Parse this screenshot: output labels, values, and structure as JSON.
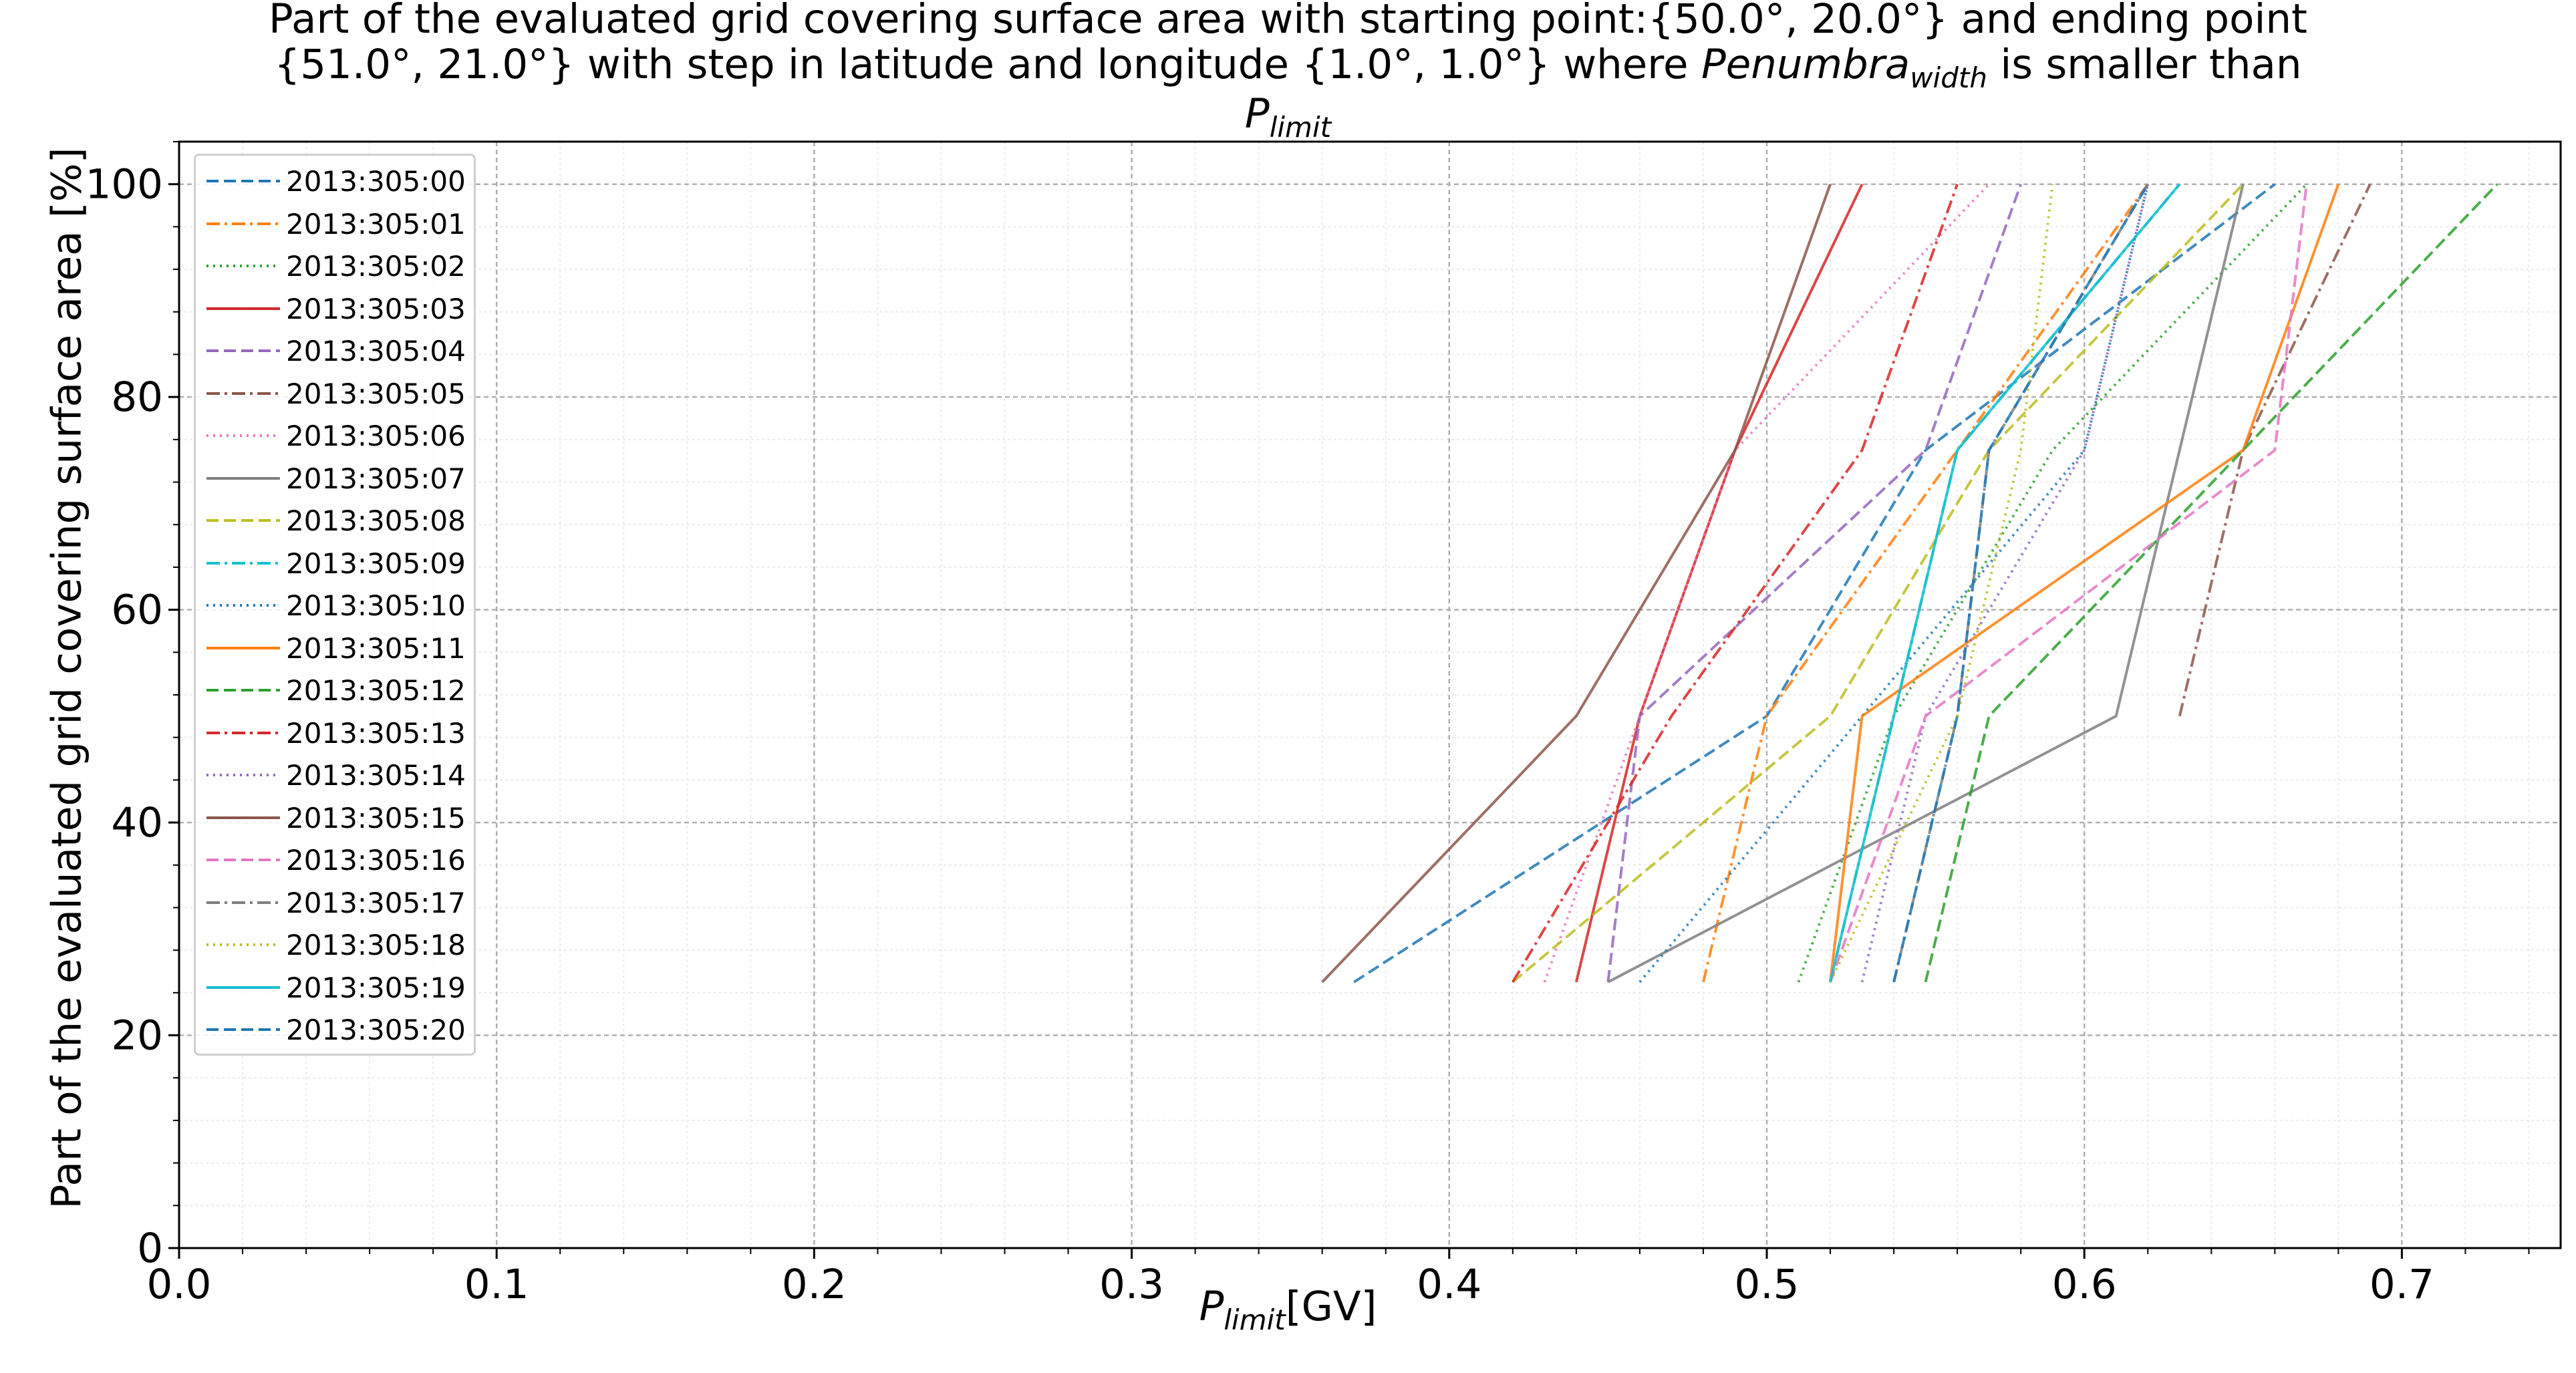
{
  "title": {
    "line1": "Part of the evaluated grid covering surface area with starting point:{50.0°, 20.0°} and ending point",
    "line2_a": "{51.0°, 21.0°} with step in latitude and longitude {1.0°, 1.0°} where ",
    "line2_b": "Penumbra",
    "line2_c": "width",
    "line2_d": " is smaller than",
    "line3_a": "P",
    "line3_b": "limit"
  },
  "chart_data": {
    "type": "line",
    "title": "Part of the evaluated grid covering surface area with starting point:{50.0°, 20.0°} and ending point {51.0°, 21.0°} with step in latitude and longitude {1.0°, 1.0°} where Penumbra_width is smaller than P_limit",
    "xlabel_main": "P",
    "xlabel_sub": "limit",
    "xlabel_unit": "[GV]",
    "ylabel": "Part of the evaluated grid covering surface area  [%]",
    "xlim": [
      0.0,
      0.75
    ],
    "ylim": [
      0,
      104
    ],
    "xticks": [
      0.0,
      0.1,
      0.2,
      0.3,
      0.4,
      0.5,
      0.6,
      0.7
    ],
    "xtick_labels": [
      "0.0",
      "0.1",
      "0.2",
      "0.3",
      "0.4",
      "0.5",
      "0.6",
      "0.7"
    ],
    "yticks": [
      0,
      20,
      40,
      60,
      80,
      100
    ],
    "ytick_labels": [
      "0",
      "20",
      "40",
      "60",
      "80",
      "100"
    ],
    "grid": true,
    "legend_position": "upper-left",
    "series": [
      {
        "name": "2013:305:00",
        "color": "#1f77b4",
        "style": "dashed",
        "x": [
          0.37,
          0.5,
          0.55,
          0.66
        ],
        "y": [
          25,
          50,
          75,
          100
        ]
      },
      {
        "name": "2013:305:01",
        "color": "#ff7f0e",
        "style": "dashdot",
        "x": [
          0.48,
          0.5,
          0.56,
          0.62
        ],
        "y": [
          25,
          50,
          75,
          100
        ]
      },
      {
        "name": "2013:305:02",
        "color": "#2ca02c",
        "style": "dotted",
        "x": [
          0.51,
          0.54,
          0.59,
          0.67
        ],
        "y": [
          25,
          50,
          75,
          100
        ]
      },
      {
        "name": "2013:305:03",
        "color": "#d62728",
        "style": "solid",
        "x": [
          0.44,
          0.46,
          0.49,
          0.53
        ],
        "y": [
          25,
          50,
          75,
          100
        ]
      },
      {
        "name": "2013:305:04",
        "color": "#9467bd",
        "style": "dashed",
        "x": [
          0.45,
          0.46,
          0.55,
          0.58
        ],
        "y": [
          25,
          50,
          75,
          100
        ]
      },
      {
        "name": "2013:305:05",
        "color": "#8c564b",
        "style": "dashdot",
        "x": [
          0.63,
          0.65,
          0.69
        ],
        "y": [
          50,
          75,
          100
        ]
      },
      {
        "name": "2013:305:06",
        "color": "#e377c2",
        "style": "dotted",
        "x": [
          0.43,
          0.46,
          0.49,
          0.57
        ],
        "y": [
          25,
          50,
          75,
          100
        ]
      },
      {
        "name": "2013:305:07",
        "color": "#7f7f7f",
        "style": "solid",
        "x": [
          0.45,
          0.61,
          0.65
        ],
        "y": [
          25,
          50,
          100
        ]
      },
      {
        "name": "2013:305:08",
        "color": "#bcbd22",
        "style": "dashed",
        "x": [
          0.42,
          0.52,
          0.57,
          0.65
        ],
        "y": [
          25,
          50,
          75,
          100
        ]
      },
      {
        "name": "2013:305:09",
        "color": "#17becf",
        "style": "dashdot",
        "x": [
          0.52,
          0.54,
          0.56,
          0.63
        ],
        "y": [
          25,
          50,
          75,
          100
        ]
      },
      {
        "name": "2013:305:10",
        "color": "#1f77b4",
        "style": "dotted",
        "x": [
          0.46,
          0.53,
          0.6,
          0.62
        ],
        "y": [
          25,
          50,
          75,
          100
        ]
      },
      {
        "name": "2013:305:11",
        "color": "#ff7f0e",
        "style": "solid",
        "x": [
          0.52,
          0.53,
          0.65,
          0.68
        ],
        "y": [
          25,
          50,
          75,
          100
        ]
      },
      {
        "name": "2013:305:12",
        "color": "#2ca02c",
        "style": "dashed",
        "x": [
          0.55,
          0.57,
          0.65,
          0.73
        ],
        "y": [
          25,
          50,
          75,
          100
        ]
      },
      {
        "name": "2013:305:13",
        "color": "#d62728",
        "style": "dashdot",
        "x": [
          0.42,
          0.47,
          0.53,
          0.56
        ],
        "y": [
          25,
          50,
          75,
          100
        ]
      },
      {
        "name": "2013:305:14",
        "color": "#9467bd",
        "style": "dotted",
        "x": [
          0.53,
          0.55,
          0.6,
          0.62
        ],
        "y": [
          25,
          50,
          75,
          100
        ]
      },
      {
        "name": "2013:305:15",
        "color": "#8c564b",
        "style": "solid",
        "x": [
          0.36,
          0.44,
          0.49,
          0.52
        ],
        "y": [
          25,
          50,
          75,
          100
        ]
      },
      {
        "name": "2013:305:16",
        "color": "#e377c2",
        "style": "dashed",
        "x": [
          0.52,
          0.55,
          0.66,
          0.67
        ],
        "y": [
          25,
          50,
          75,
          100
        ]
      },
      {
        "name": "2013:305:17",
        "color": "#7f7f7f",
        "style": "dashdot",
        "x": [
          0.54,
          0.56,
          0.57,
          0.62
        ],
        "y": [
          25,
          50,
          75,
          100
        ]
      },
      {
        "name": "2013:305:18",
        "color": "#bcbd22",
        "style": "dotted",
        "x": [
          0.52,
          0.56,
          0.58,
          0.59
        ],
        "y": [
          25,
          50,
          75,
          100
        ]
      },
      {
        "name": "2013:305:19",
        "color": "#17becf",
        "style": "solid",
        "x": [
          0.52,
          0.54,
          0.56,
          0.63
        ],
        "y": [
          25,
          50,
          75,
          100
        ]
      },
      {
        "name": "2013:305:20",
        "color": "#1f77b4",
        "style": "dashed",
        "x": [
          0.54,
          0.56,
          0.57,
          0.62
        ],
        "y": [
          25,
          50,
          75,
          100
        ]
      }
    ]
  }
}
